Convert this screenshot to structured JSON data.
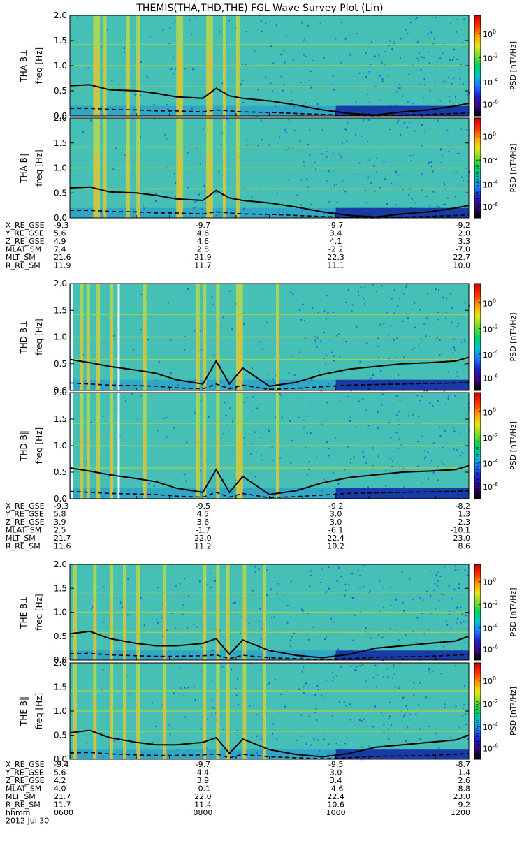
{
  "title": "THEMIS(THA,THD,THE) FGL Wave Survey Plot (Lin)",
  "colors": {
    "colorbar": [
      "#000000",
      "#3a0a7a",
      "#1e1ec8",
      "#1e78ff",
      "#00c8c8",
      "#00d264",
      "#78dc28",
      "#e6e61e",
      "#ff9600",
      "#ff2d00",
      "#c80000"
    ],
    "background_spectrum": "#46c0b4"
  },
  "colorbar": {
    "label": "PSD [nT²/Hz]",
    "ticks": [
      {
        "base": "10",
        "exp": "0",
        "value": 1
      },
      {
        "base": "10",
        "exp": "-2",
        "value": 0.01
      },
      {
        "base": "10",
        "exp": "-4",
        "value": 0.0001
      },
      {
        "base": "10",
        "exp": "-6",
        "value": 1e-06
      }
    ],
    "timestamps": [
      "Wed Sep 19 15:07:09 2012",
      "Wed Sep 19 15:07:10 2012",
      "Wed Sep 19 15:07:10 2012"
    ]
  },
  "ephem_labels": [
    "X_RE_GSE",
    "Y_RE_GSE",
    "Z_RE_GSE",
    "MLAT_SM",
    "MLT_SM",
    "R_RE_SM"
  ],
  "time_axis": {
    "label": "hhmm",
    "date": "2012 Jul 30",
    "ticks": [
      "0600",
      "0800",
      "1000",
      "1200"
    ]
  },
  "chart_data": [
    {
      "type": "heatmap",
      "probe": "THA",
      "panels": [
        {
          "ylabel_main": "THA B⊥",
          "ylabel_unit": "freq [Hz]"
        },
        {
          "ylabel_main": "THA B‖",
          "ylabel_unit": "freq [Hz]"
        }
      ],
      "yticks": [
        "0.0",
        "0.5",
        "1.0",
        "1.5",
        "2.0"
      ],
      "ylim": [
        0,
        2.0
      ],
      "xlim": [
        6,
        12
      ],
      "x_time_hours": [
        6,
        6.3,
        6.6,
        7.0,
        7.3,
        7.6,
        8.0,
        8.2,
        8.4,
        8.6,
        9.0,
        9.4,
        9.8,
        10.2,
        10.6,
        11.0,
        11.4,
        11.8,
        12.0
      ],
      "fce_proton": [
        0.6,
        0.62,
        0.52,
        0.5,
        0.45,
        0.38,
        0.35,
        0.55,
        0.4,
        0.35,
        0.3,
        0.22,
        0.12,
        0.05,
        0.02,
        0.08,
        0.12,
        0.2,
        0.25
      ],
      "fce_helium": [
        0.15,
        0.15,
        0.13,
        0.12,
        0.1,
        0.1,
        0.08,
        0.12,
        0.1,
        0.08,
        0.07,
        0.05,
        0.03,
        0.01,
        0.0,
        0.02,
        0.03,
        0.05,
        0.06
      ],
      "ephemeris_rows": [
        [
          "-9.3",
          "-9.7",
          "-9.7",
          "-9.2"
        ],
        [
          "5.6",
          "4.6",
          "3.4",
          "2.0"
        ],
        [
          "4.9",
          "4.6",
          "4.1",
          "3.3"
        ],
        [
          "7.4",
          "2.8",
          "-2.2",
          "-7.0"
        ],
        [
          "21.6",
          "21.9",
          "22.3",
          "22.7"
        ],
        [
          "11.9",
          "11.7",
          "11.1",
          "10.0"
        ]
      ]
    },
    {
      "type": "heatmap",
      "probe": "THD",
      "panels": [
        {
          "ylabel_main": "THD B⊥",
          "ylabel_unit": "freq [Hz]"
        },
        {
          "ylabel_main": "THD B‖",
          "ylabel_unit": "freq [Hz]"
        }
      ],
      "yticks": [
        "0.0",
        "0.5",
        "1.0",
        "1.5",
        "2.0"
      ],
      "ylim": [
        0,
        2.0
      ],
      "xlim": [
        6,
        12
      ],
      "data_gaps_hours": [
        [
          6.02,
          6.05
        ],
        [
          6.72,
          6.75
        ]
      ],
      "x_time_hours": [
        6,
        6.3,
        6.6,
        7.0,
        7.3,
        7.6,
        8.0,
        8.2,
        8.4,
        8.6,
        9.0,
        9.4,
        9.8,
        10.2,
        10.6,
        11.0,
        11.4,
        11.8,
        12.0
      ],
      "fce_proton": [
        0.58,
        0.52,
        0.45,
        0.38,
        0.32,
        0.2,
        0.12,
        0.55,
        0.12,
        0.42,
        0.08,
        0.15,
        0.3,
        0.4,
        0.45,
        0.5,
        0.52,
        0.55,
        0.62
      ],
      "fce_helium": [
        0.14,
        0.12,
        0.1,
        0.09,
        0.08,
        0.05,
        0.03,
        0.12,
        0.03,
        0.1,
        0.02,
        0.04,
        0.07,
        0.1,
        0.11,
        0.12,
        0.13,
        0.14,
        0.15
      ],
      "ephemeris_rows": [
        [
          "-9.3",
          "-9.5",
          "-9.2",
          "-8.2"
        ],
        [
          "5.8",
          "4.5",
          "3.0",
          "1.3"
        ],
        [
          "3.9",
          "3.6",
          "3.0",
          "2.3"
        ],
        [
          "2.5",
          "-1.7",
          "-6.1",
          "-10.1"
        ],
        [
          "21.7",
          "22.0",
          "22.4",
          "23.0"
        ],
        [
          "11.6",
          "11.2",
          "10.2",
          "8.6"
        ]
      ]
    },
    {
      "type": "heatmap",
      "probe": "THE",
      "panels": [
        {
          "ylabel_main": "THE B⊥",
          "ylabel_unit": "freq [Hz]"
        },
        {
          "ylabel_main": "THE B‖",
          "ylabel_unit": "freq [Hz]"
        }
      ],
      "yticks": [
        "0.0",
        "0.5",
        "1.0",
        "1.5",
        "2.0"
      ],
      "ylim": [
        0,
        2.0
      ],
      "xlim": [
        6,
        12
      ],
      "x_time_hours": [
        6,
        6.3,
        6.6,
        7.0,
        7.3,
        7.6,
        8.0,
        8.2,
        8.4,
        8.6,
        9.0,
        9.4,
        9.8,
        10.2,
        10.6,
        11.0,
        11.4,
        11.8,
        12.0
      ],
      "fce_proton": [
        0.55,
        0.6,
        0.45,
        0.35,
        0.3,
        0.3,
        0.35,
        0.45,
        0.12,
        0.42,
        0.2,
        0.1,
        0.05,
        0.12,
        0.25,
        0.3,
        0.35,
        0.4,
        0.5
      ],
      "fce_helium": [
        0.13,
        0.14,
        0.11,
        0.09,
        0.08,
        0.08,
        0.09,
        0.11,
        0.03,
        0.1,
        0.05,
        0.03,
        0.01,
        0.03,
        0.06,
        0.07,
        0.08,
        0.1,
        0.12
      ],
      "ephemeris_rows": [
        [
          "-9.4",
          "-9.7",
          "-9.5",
          "-8.7"
        ],
        [
          "5.6",
          "4.4",
          "3.0",
          "1.4"
        ],
        [
          "4.2",
          "3.9",
          "3.4",
          "2.6"
        ],
        [
          "4.0",
          "-0.1",
          "-4.6",
          "-8.8"
        ],
        [
          "21.7",
          "22.0",
          "22.4",
          "23.0"
        ],
        [
          "11.7",
          "11.4",
          "10.6",
          "9.2"
        ]
      ]
    }
  ]
}
